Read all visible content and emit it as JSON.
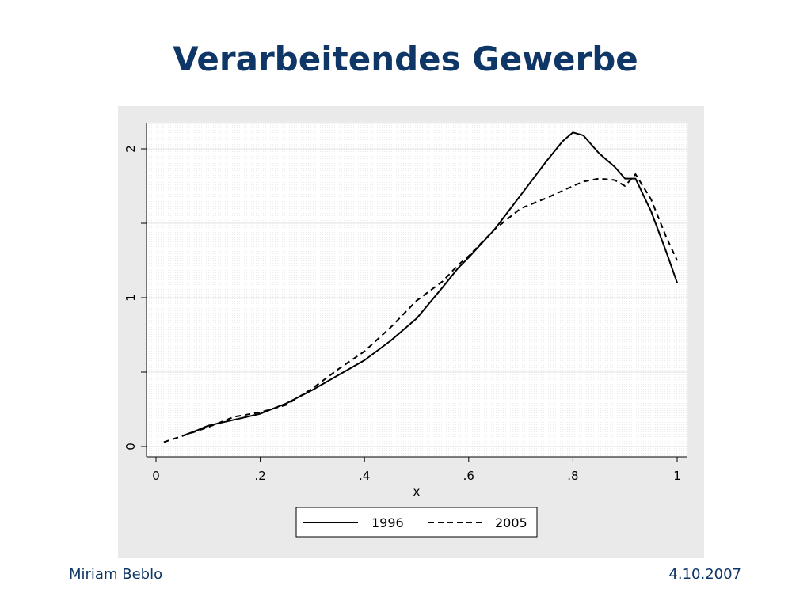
{
  "slide": {
    "title": "Verarbeitendes Gewerbe",
    "author": "Miriam Beblo",
    "date": "4.10.2007"
  },
  "colors": {
    "title": "#0e3666",
    "panel_background": "#eaeaea",
    "plot_background": "#ffffff",
    "line": "#000000"
  },
  "chart_data": {
    "type": "line",
    "xlabel": "x",
    "ylabel": "",
    "xlim": [
      0,
      1
    ],
    "ylim": [
      0,
      2.15
    ],
    "xticks": [
      0,
      0.2,
      0.4,
      0.6,
      0.8,
      1
    ],
    "xtick_labels": [
      "0",
      ".2",
      ".4",
      ".6",
      ".8",
      "1"
    ],
    "yticks": [
      0,
      0.5,
      1,
      1.5,
      2
    ],
    "ytick_labels": [
      "0",
      "",
      "1",
      "",
      "2"
    ],
    "grid": true,
    "legend_position": "bottom",
    "series": [
      {
        "name": "1996",
        "style": "solid",
        "x": [
          0.05,
          0.08,
          0.1,
          0.15,
          0.2,
          0.25,
          0.3,
          0.35,
          0.4,
          0.45,
          0.5,
          0.55,
          0.58,
          0.6,
          0.65,
          0.7,
          0.75,
          0.78,
          0.8,
          0.82,
          0.85,
          0.88,
          0.9,
          0.92,
          0.95,
          0.98,
          1.0
        ],
        "y": [
          0.07,
          0.11,
          0.14,
          0.18,
          0.22,
          0.29,
          0.38,
          0.48,
          0.58,
          0.71,
          0.86,
          1.07,
          1.2,
          1.27,
          1.46,
          1.69,
          1.92,
          2.05,
          2.11,
          2.09,
          1.97,
          1.88,
          1.8,
          1.8,
          1.58,
          1.3,
          1.1
        ]
      },
      {
        "name": "2005",
        "style": "dashed",
        "x": [
          0.015,
          0.05,
          0.1,
          0.15,
          0.2,
          0.25,
          0.3,
          0.35,
          0.4,
          0.45,
          0.5,
          0.55,
          0.58,
          0.6,
          0.65,
          0.7,
          0.75,
          0.8,
          0.82,
          0.85,
          0.88,
          0.9,
          0.92,
          0.95,
          0.98,
          1.0
        ],
        "y": [
          0.03,
          0.07,
          0.13,
          0.2,
          0.23,
          0.28,
          0.39,
          0.52,
          0.64,
          0.8,
          0.98,
          1.11,
          1.22,
          1.28,
          1.46,
          1.6,
          1.67,
          1.75,
          1.78,
          1.8,
          1.79,
          1.75,
          1.83,
          1.66,
          1.4,
          1.25
        ]
      }
    ]
  }
}
